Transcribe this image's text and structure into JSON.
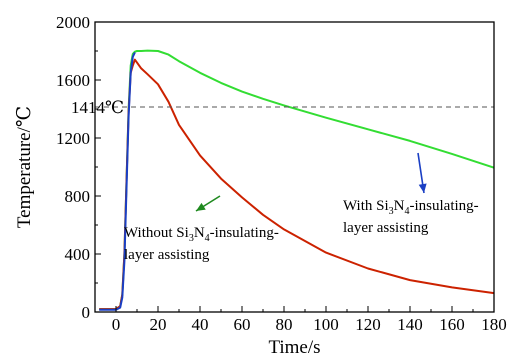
{
  "chart_data": {
    "type": "line",
    "xlabel": "Time/s",
    "ylabel": "Temperature/℃",
    "xlim": [
      -10,
      180
    ],
    "ylim": [
      0,
      2000
    ],
    "xticks": [
      0,
      20,
      40,
      60,
      80,
      100,
      120,
      140,
      160,
      180
    ],
    "yticks": [
      0,
      400,
      800,
      1200,
      1600,
      2000
    ],
    "xtick_labels": [
      "0",
      "20",
      "40",
      "60",
      "80",
      "100",
      "120",
      "140",
      "160",
      "180"
    ],
    "ytick_labels": [
      "0",
      "400",
      "800",
      "1200",
      "1600",
      "2000"
    ],
    "reference_line": {
      "y": 1414,
      "label": "1414℃",
      "style": "dashed"
    },
    "grid": false,
    "series": [
      {
        "color": "#33dd33",
        "x": [
          -8,
          0,
          2,
          3,
          4,
          5,
          6,
          7,
          8,
          9,
          10,
          12,
          15,
          20,
          25,
          30,
          40,
          50,
          60,
          70,
          80,
          100,
          120,
          140,
          160,
          180
        ],
        "y": [
          20,
          20,
          40,
          120,
          400,
          900,
          1400,
          1700,
          1780,
          1795,
          1800,
          1800,
          1803,
          1800,
          1775,
          1730,
          1650,
          1580,
          1520,
          1470,
          1425,
          1340,
          1260,
          1180,
          1090,
          995
        ]
      },
      {
        "color": "#cc2200",
        "x": [
          -8,
          0,
          2,
          3,
          4,
          5,
          6,
          7,
          8,
          9,
          10,
          12,
          15,
          20,
          25,
          30,
          40,
          50,
          60,
          70,
          80,
          100,
          120,
          140,
          160,
          180
        ],
        "y": [
          20,
          20,
          40,
          120,
          400,
          900,
          1380,
          1650,
          1700,
          1740,
          1720,
          1680,
          1640,
          1570,
          1450,
          1290,
          1080,
          920,
          790,
          670,
          570,
          410,
          300,
          220,
          170,
          130
        ]
      },
      {
        "color": "#1a3fc4",
        "x": [
          -8,
          0,
          2,
          3,
          4,
          5,
          6,
          7,
          8,
          9
        ],
        "y": [
          15,
          15,
          30,
          100,
          350,
          850,
          1350,
          1650,
          1760,
          1790
        ]
      }
    ],
    "annotations": [
      {
        "lines": [
          {
            "parts": [
              {
                "text": "Without Si"
              },
              {
                "text": "3",
                "sub": true
              },
              {
                "text": "N"
              },
              {
                "text": "4",
                "sub": true
              },
              {
                "text": "-insulating-"
              }
            ]
          },
          {
            "parts": [
              {
                "text": "layer assisting"
              }
            ]
          }
        ],
        "arrow_color": "#1f8a1f"
      },
      {
        "lines": [
          {
            "parts": [
              {
                "text": "With Si"
              },
              {
                "text": "3",
                "sub": true
              },
              {
                "text": "N"
              },
              {
                "text": "4",
                "sub": true
              },
              {
                "text": "-insulating-"
              }
            ]
          },
          {
            "parts": [
              {
                "text": "layer assisting"
              }
            ]
          }
        ],
        "arrow_color": "#1a3fc4"
      }
    ]
  }
}
